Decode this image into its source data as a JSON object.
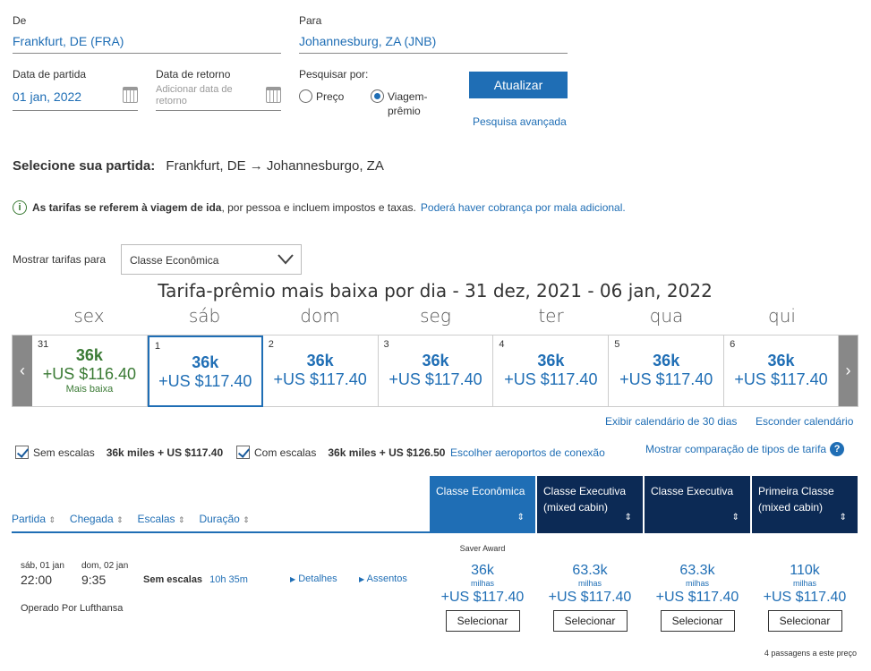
{
  "search": {
    "from_label": "De",
    "from_value": "Frankfurt, DE (FRA)",
    "to_label": "Para",
    "to_value": "Johannesburg, ZA (JNB)",
    "depart_label": "Data de partida",
    "depart_value": "01 jan, 2022",
    "return_label": "Data de retorno",
    "return_placeholder": "Adicionar data de retorno",
    "search_by_label": "Pesquisar por:",
    "opt_price": "Preço",
    "opt_award": "Viagem-prêmio",
    "update_button": "Atualizar",
    "advanced_link": "Pesquisa avançada"
  },
  "route": {
    "label": "Selecione sua partida:",
    "text": "Frankfurt, DE → Johannesburgo, ZA"
  },
  "notice": {
    "bold": "As tarifas se referem à viagem de ida",
    "rest": ", por pessoa e incluem impostos e taxas.",
    "link": "Poderá haver cobrança por mala adicional."
  },
  "fare_class": {
    "label": "Mostrar tarifas para",
    "selected": "Classe Econômica"
  },
  "calendar": {
    "title": "Tarifa-prêmio mais baixa por dia - 31 dez, 2021 - 06 jan, 2022",
    "days": [
      {
        "name": "sex",
        "num": "31",
        "miles": "36k",
        "price": "+US $116.40",
        "note": "Mais baixa"
      },
      {
        "name": "sáb",
        "num": "1",
        "miles": "36k",
        "price": "+US $117.40",
        "note": ""
      },
      {
        "name": "dom",
        "num": "2",
        "miles": "36k",
        "price": "+US $117.40",
        "note": ""
      },
      {
        "name": "seg",
        "num": "3",
        "miles": "36k",
        "price": "+US $117.40",
        "note": ""
      },
      {
        "name": "ter",
        "num": "4",
        "miles": "36k",
        "price": "+US $117.40",
        "note": ""
      },
      {
        "name": "qua",
        "num": "5",
        "miles": "36k",
        "price": "+US $117.40",
        "note": ""
      },
      {
        "name": "qui",
        "num": "6",
        "miles": "36k",
        "price": "+US $117.40",
        "note": ""
      }
    ],
    "show_30": "Exibir calendário de 30 dias",
    "hide": "Esconder calendário",
    "lowest_color": "#3a7a34",
    "selected_border": "#1f6eb5"
  },
  "filters": {
    "nonstop_label": "Sem escalas",
    "nonstop_price": "36k miles + US $117.40",
    "stops_label": "Com escalas",
    "stops_price": "36k miles + US $126.50",
    "choose_airports": "Escolher aeroportos de conexão",
    "compare": "Mostrar comparação de tipos de tarifa"
  },
  "results": {
    "sort_headers": [
      "Partida",
      "Chegada",
      "Escalas",
      "Duração"
    ],
    "fare_headers": [
      {
        "line1": "Classe Econômica",
        "line2": "",
        "color": "#1f6eb5"
      },
      {
        "line1": "Classe Executiva",
        "line2": "(mixed cabin)",
        "color": "#0c2a55"
      },
      {
        "line1": "Classe Executiva",
        "line2": "",
        "color": "#0c2a55"
      },
      {
        "line1": "Primeira Classe",
        "line2": "(mixed cabin)",
        "color": "#0c2a55"
      }
    ],
    "flight": {
      "depart_date": "sáb, 01 jan",
      "depart_time": "22:00",
      "arrive_date": "dom, 02 jan",
      "arrive_time": "9:35",
      "stops": "Sem escalas",
      "duration": "10h 35m",
      "details": "Detalhes",
      "seats": "Assentos",
      "operator": "Operado Por Lufthansa",
      "saver": "Saver Award",
      "fares": [
        {
          "miles": "36k",
          "unit": "milhas",
          "price": "+US $117.40",
          "button": "Selecionar"
        },
        {
          "miles": "63.3k",
          "unit": "milhas",
          "price": "+US $117.40",
          "button": "Selecionar"
        },
        {
          "miles": "63.3k",
          "unit": "milhas",
          "price": "+US $117.40",
          "button": "Selecionar"
        },
        {
          "miles": "110k",
          "unit": "milhas",
          "price": "+US $117.40",
          "button": "Selecionar"
        }
      ],
      "passengers_note": "4 passagens a este preço"
    }
  }
}
